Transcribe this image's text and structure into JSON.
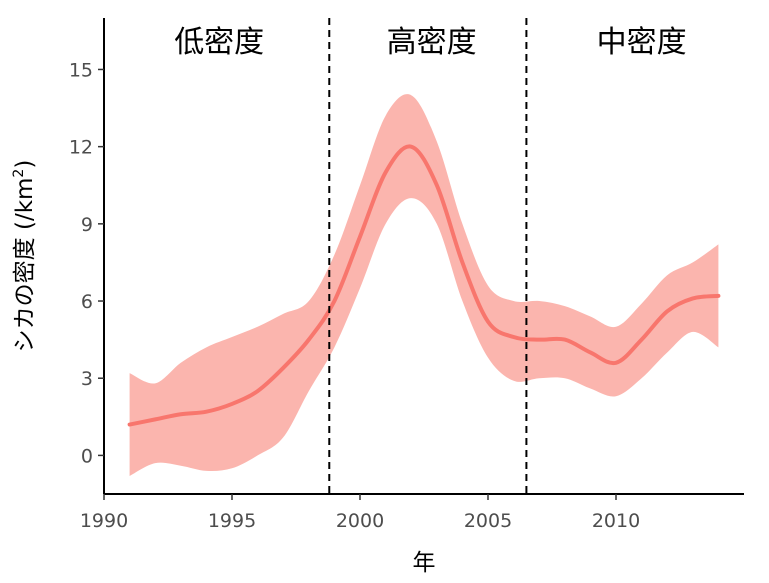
{
  "chart_data": {
    "type": "line",
    "xlabel": "年",
    "ylabel": "シカの密度 (/km",
    "ylabel_superscript": "2",
    "ylabel_suffix": ")",
    "xlim": [
      1990,
      2015
    ],
    "ylim": [
      -1.5,
      17
    ],
    "x_ticks": [
      1990,
      1995,
      2000,
      2005,
      2010
    ],
    "y_ticks": [
      0,
      3,
      6,
      9,
      12,
      15
    ],
    "grid": false,
    "colors": {
      "line": "#f8766d",
      "ribbon": "#fbb5ae",
      "axis": "#000000",
      "divider": "#000000"
    },
    "dividers": [
      1998.8,
      2006.5
    ],
    "regions": [
      {
        "label": "低密度",
        "x": 1994.5
      },
      {
        "label": "高密度",
        "x": 2002.8
      },
      {
        "label": "中密度",
        "x": 2011
      }
    ],
    "series": [
      {
        "x": [
          1991,
          1992,
          1993,
          1994,
          1995,
          1996,
          1997,
          1998,
          1999,
          2000,
          2001,
          2002,
          2003,
          2004,
          2005,
          2006,
          2007,
          2008,
          2009,
          2010,
          2011,
          2012,
          2013,
          2014
        ],
        "y": [
          1.2,
          1.4,
          1.6,
          1.7,
          2.0,
          2.5,
          3.4,
          4.5,
          6.0,
          8.5,
          11.0,
          12.0,
          10.5,
          7.5,
          5.2,
          4.6,
          4.5,
          4.5,
          4.0,
          3.6,
          4.5,
          5.6,
          6.1,
          6.2
        ],
        "lower": [
          -0.8,
          -0.3,
          -0.4,
          -0.6,
          -0.5,
          0.0,
          0.7,
          2.5,
          4.2,
          6.5,
          9.0,
          10.0,
          9.0,
          6.0,
          3.8,
          2.9,
          3.0,
          3.0,
          2.6,
          2.3,
          3.0,
          4.0,
          4.8,
          4.2
        ],
        "upper": [
          3.2,
          2.8,
          3.6,
          4.2,
          4.6,
          5.0,
          5.5,
          6.0,
          7.8,
          10.5,
          13.2,
          14.0,
          12.2,
          9.0,
          6.6,
          6.0,
          6.0,
          5.8,
          5.4,
          5.0,
          5.9,
          7.0,
          7.5,
          8.2
        ]
      }
    ]
  }
}
